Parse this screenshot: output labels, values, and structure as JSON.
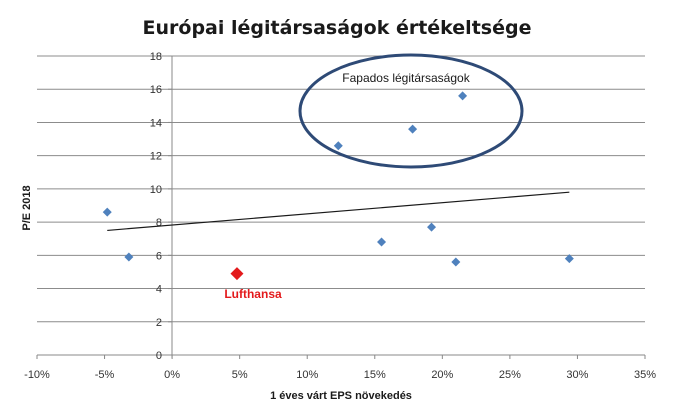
{
  "chart_data": {
    "type": "scatter",
    "title": "Európai légitársaságok értékeltsége",
    "xlabel": "1 éves várt EPS növekedés",
    "ylabel": "P/E 2018",
    "xlim": [
      -0.1,
      0.35
    ],
    "ylim": [
      0,
      18
    ],
    "x_ticks": [
      "-10%",
      "-5%",
      "0%",
      "5%",
      "10%",
      "15%",
      "20%",
      "25%",
      "30%",
      "35%"
    ],
    "y_ticks": [
      "0",
      "2",
      "4",
      "6",
      "8",
      "10",
      "12",
      "14",
      "16",
      "18"
    ],
    "grid": "horizontal",
    "marker_color": "#4f81bd",
    "highlight_color": "#e31a1c",
    "points": [
      {
        "x": -0.048,
        "y": 8.6
      },
      {
        "x": -0.032,
        "y": 5.9
      },
      {
        "x": 0.123,
        "y": 12.6
      },
      {
        "x": 0.155,
        "y": 6.8
      },
      {
        "x": 0.178,
        "y": 13.6
      },
      {
        "x": 0.192,
        "y": 7.7
      },
      {
        "x": 0.21,
        "y": 5.6
      },
      {
        "x": 0.215,
        "y": 15.6
      },
      {
        "x": 0.294,
        "y": 5.8
      }
    ],
    "highlight_point": {
      "x": 0.048,
      "y": 4.9,
      "label": "Lufthansa"
    },
    "trendline": {
      "x1": -0.048,
      "y1": 7.5,
      "x2": 0.294,
      "y2": 9.8
    },
    "annotation_group": {
      "label": "Fapados légitársaságok"
    }
  }
}
